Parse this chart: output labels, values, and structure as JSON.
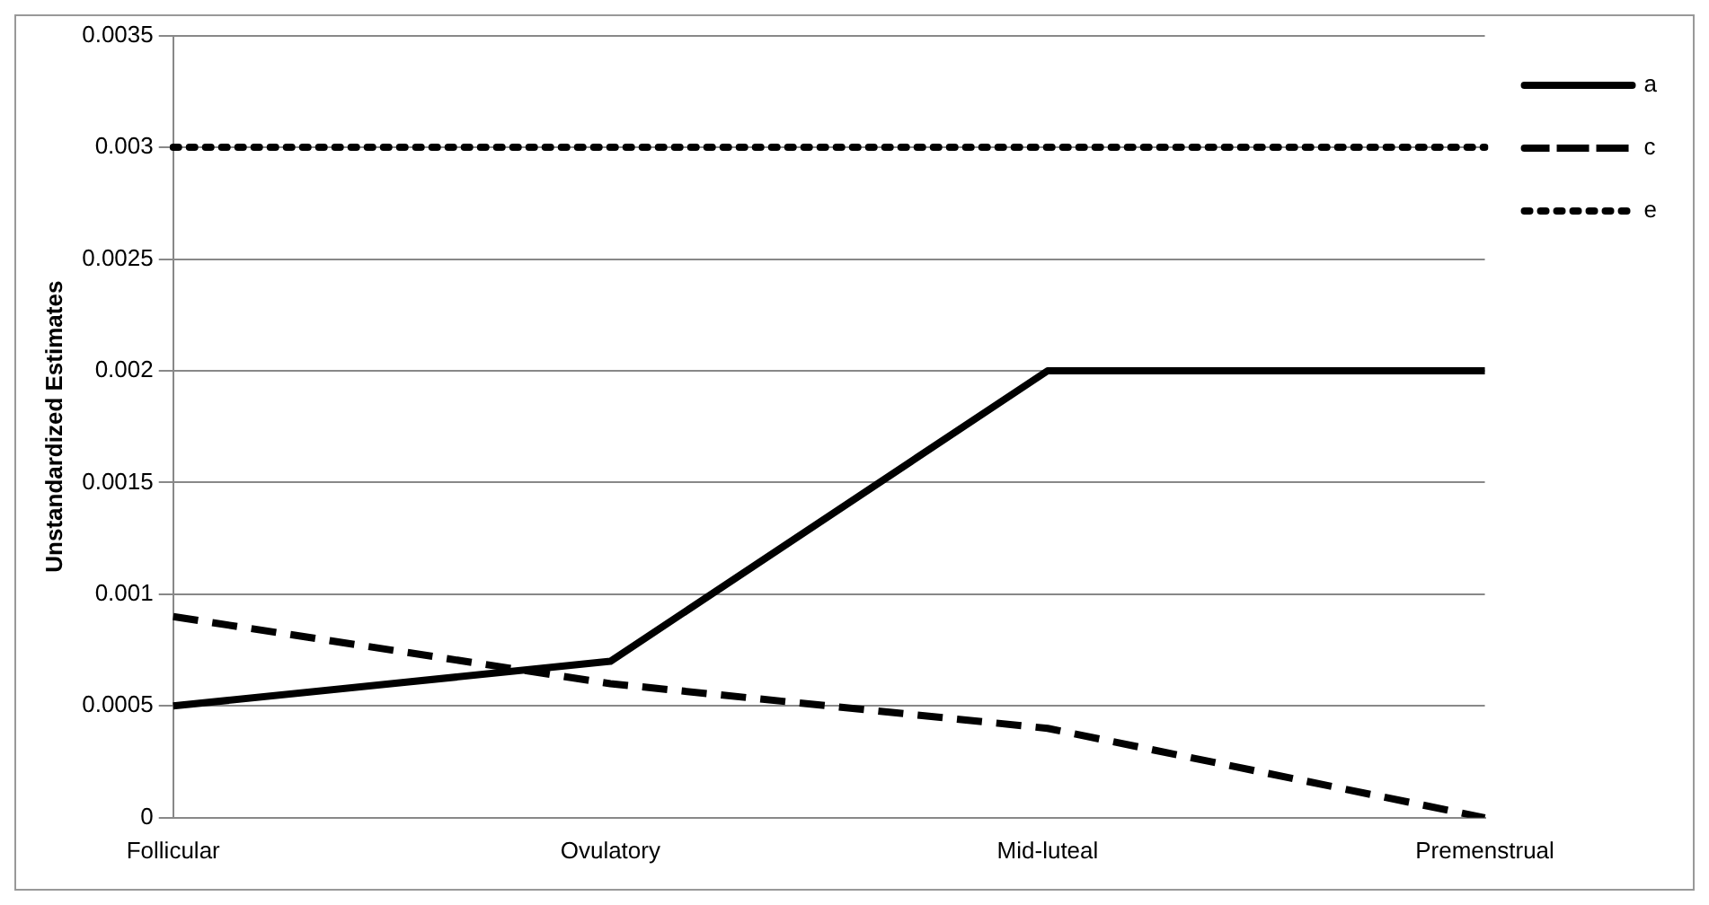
{
  "chart_data": {
    "type": "line",
    "ylabel": "Unstandardized Estimates",
    "categories": [
      "Follicular",
      "Ovulatory",
      "Mid-luteal",
      "Premenstrual"
    ],
    "series": [
      {
        "name": "a",
        "color": "#000000",
        "line_style": "solid",
        "values": [
          0.0005,
          0.0007,
          0.002,
          0.002
        ]
      },
      {
        "name": "c",
        "color": "#000000",
        "line_style": "dashed",
        "values": [
          0.0009,
          0.0006,
          0.0004,
          0
        ]
      },
      {
        "name": "e",
        "color": "#000000",
        "line_style": "dotted",
        "values": [
          0.003,
          0.003,
          0.003,
          0.003
        ]
      }
    ],
    "ylim": [
      0,
      0.0035
    ],
    "yticks": [
      0,
      0.0005,
      0.001,
      0.0015,
      0.002,
      0.0025,
      0.003,
      0.0035
    ],
    "grid": "y",
    "legend": "right",
    "marker": "none"
  }
}
